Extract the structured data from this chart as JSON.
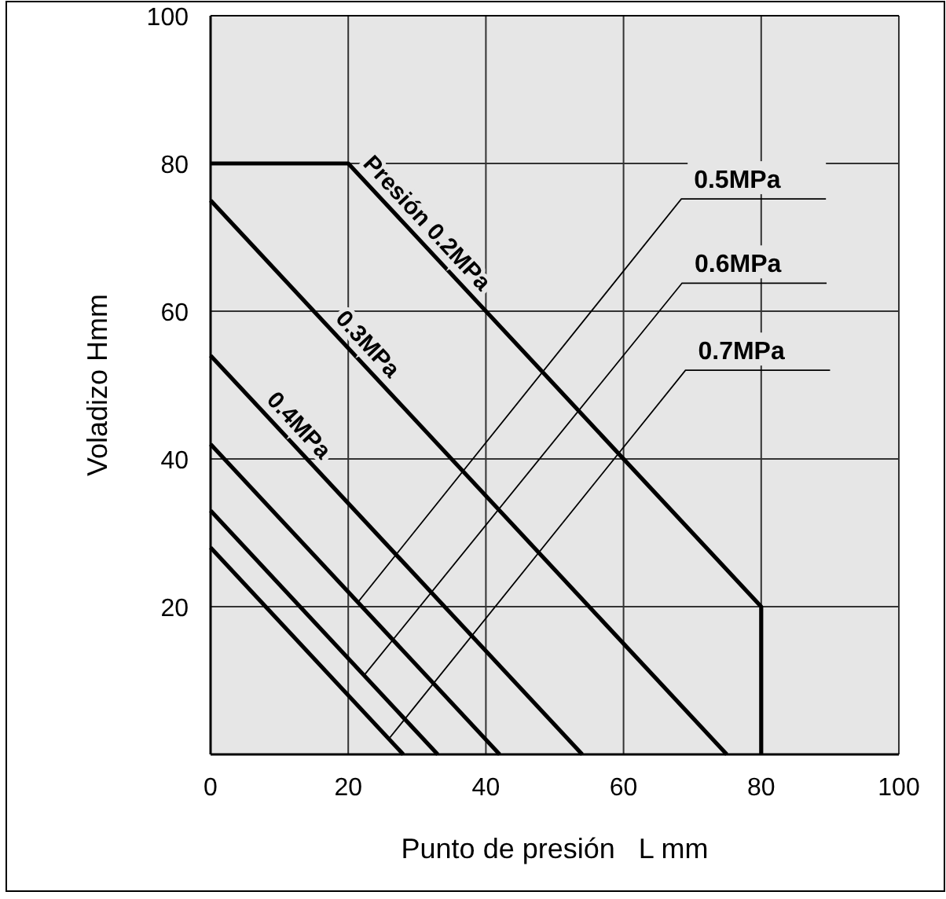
{
  "chart_data": {
    "type": "line",
    "xlabel": "Punto de presión   L mm",
    "ylabel": "Voladizo Hmm",
    "xlim": [
      0,
      100
    ],
    "ylim": [
      0,
      100
    ],
    "xticks": [
      0,
      20,
      40,
      60,
      80,
      100
    ],
    "yticks": [
      20,
      40,
      60,
      80,
      100
    ],
    "grid": true,
    "marker": "none",
    "line_style": "solid",
    "series": [
      {
        "name": "Presión 0.2MPa",
        "color": "#000000",
        "x": [
          0,
          20,
          80,
          80
        ],
        "values": [
          80,
          80,
          20,
          0
        ]
      },
      {
        "name": "0.3MPa",
        "color": "#000000",
        "x": [
          0,
          75
        ],
        "values": [
          75,
          0
        ]
      },
      {
        "name": "0.4MPa",
        "color": "#000000",
        "x": [
          0,
          54
        ],
        "values": [
          54,
          0
        ]
      },
      {
        "name": "0.5MPa",
        "color": "#000000",
        "x": [
          0,
          42
        ],
        "values": [
          42,
          0
        ]
      },
      {
        "name": "0.6MPa",
        "color": "#000000",
        "x": [
          0,
          33
        ],
        "values": [
          33,
          0
        ]
      },
      {
        "name": "0.7MPa",
        "color": "#000000",
        "x": [
          0,
          28
        ],
        "values": [
          28,
          0
        ]
      }
    ]
  }
}
